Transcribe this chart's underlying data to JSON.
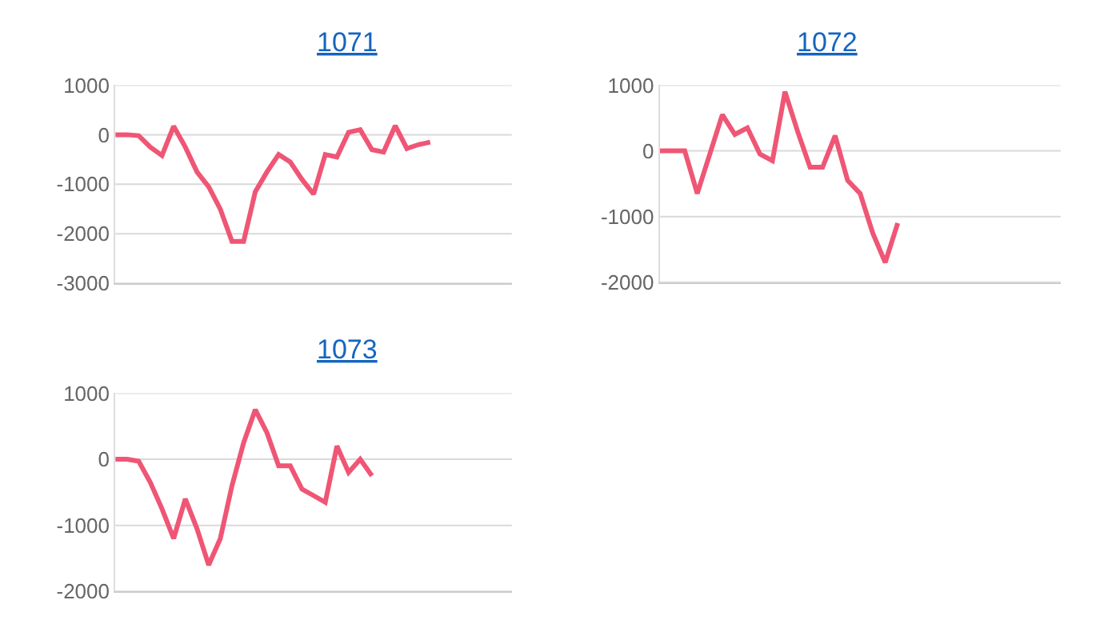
{
  "chart_data": [
    {
      "type": "line",
      "title": "1071",
      "categories": [
        null,
        null,
        null,
        null,
        null,
        null,
        null,
        null,
        null,
        null,
        null,
        null,
        null,
        null,
        null,
        null,
        null,
        null,
        null,
        null,
        null,
        null,
        null,
        null,
        null,
        null,
        null,
        null,
        null,
        null,
        null,
        null,
        null,
        null,
        null
      ],
      "series": [
        {
          "color": "#ef5675",
          "values": [
            0,
            0,
            -20,
            -250,
            -420,
            170,
            -250,
            -750,
            -1050,
            -1500,
            -2150,
            -2150,
            -1150,
            -750,
            -400,
            -550,
            -900,
            -1200,
            -400,
            -450,
            50,
            100,
            -300,
            -350,
            180,
            -280,
            -200,
            -150,
            null,
            null,
            null,
            null,
            null,
            null,
            null
          ]
        }
      ],
      "ylim": [
        -3000,
        1000
      ],
      "yticks": [
        -3000,
        -2000,
        -1000,
        0,
        1000
      ],
      "grid": "y",
      "tick_labels": "y",
      "marker": "none",
      "line_style": "solid"
    },
    {
      "type": "line",
      "title": "1072",
      "categories": [
        null,
        null,
        null,
        null,
        null,
        null,
        null,
        null,
        null,
        null,
        null,
        null,
        null,
        null,
        null,
        null,
        null,
        null,
        null,
        null,
        null,
        null,
        null,
        null,
        null,
        null,
        null,
        null,
        null,
        null,
        null,
        null,
        null
      ],
      "series": [
        {
          "color": "#ef5675",
          "values": [
            0,
            0,
            0,
            -650,
            -50,
            550,
            250,
            350,
            -50,
            -150,
            900,
            300,
            -250,
            -250,
            230,
            -450,
            -650,
            -1250,
            -1700,
            -1100,
            null,
            null,
            null,
            null,
            null,
            null,
            null,
            null,
            null,
            null,
            null,
            null,
            null
          ]
        }
      ],
      "ylim": [
        -2000,
        1000
      ],
      "yticks": [
        -2000,
        -1000,
        0,
        1000
      ],
      "grid": "y",
      "tick_labels": "y",
      "marker": "none",
      "line_style": "solid"
    },
    {
      "type": "line",
      "title": "1073",
      "categories": [
        null,
        null,
        null,
        null,
        null,
        null,
        null,
        null,
        null,
        null,
        null,
        null,
        null,
        null,
        null,
        null,
        null,
        null,
        null,
        null,
        null,
        null,
        null,
        null,
        null,
        null,
        null,
        null,
        null,
        null,
        null,
        null,
        null,
        null,
        null
      ],
      "series": [
        {
          "color": "#ef5675",
          "values": [
            0,
            0,
            -30,
            -350,
            -750,
            -1200,
            -600,
            -1050,
            -1600,
            -1200,
            -400,
            250,
            750,
            400,
            -100,
            -100,
            -450,
            -550,
            -650,
            200,
            -200,
            0,
            -250,
            null,
            null,
            null,
            null,
            null,
            null,
            null,
            null,
            null,
            null,
            null,
            null
          ]
        }
      ],
      "ylim": [
        -2000,
        1000
      ],
      "yticks": [
        -2000,
        -1000,
        0,
        1000
      ],
      "grid": "y",
      "tick_labels": "y",
      "marker": "none",
      "line_style": "solid"
    }
  ]
}
